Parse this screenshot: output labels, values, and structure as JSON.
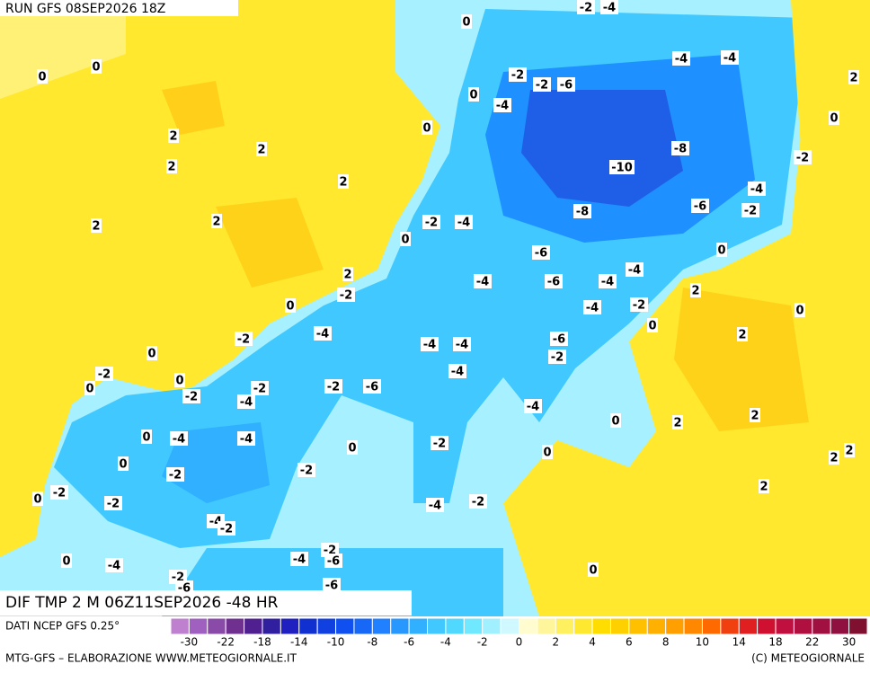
{
  "header": {
    "run": "RUN GFS 08SEP2026 18Z"
  },
  "map": {
    "labels": [
      0,
      -2,
      -4,
      0,
      0,
      -2,
      -2,
      -6,
      -4,
      -4,
      2,
      0,
      -4,
      0,
      2,
      2,
      0,
      -8,
      -2,
      2,
      -10,
      2,
      -4,
      -8,
      -6,
      -2,
      2,
      2,
      -2,
      -4,
      0,
      -6,
      0,
      2,
      -4,
      -6,
      -4,
      -4,
      -2,
      0,
      -4,
      -2,
      2,
      0,
      -4,
      0,
      -2,
      -4,
      -4,
      -6,
      2,
      0,
      -2,
      -4,
      -2,
      0,
      0,
      -2,
      -2,
      -2,
      -6,
      -4,
      -4,
      2,
      0,
      2,
      0,
      -4,
      -4,
      -2,
      0,
      0,
      2,
      2,
      0,
      -2,
      -2,
      2,
      0,
      -2,
      -2,
      -4,
      -2,
      -4,
      -2,
      -2,
      0,
      -4,
      -4,
      -6,
      0,
      -2,
      -6,
      -6
    ]
  },
  "footer": {
    "title": "DIF TMP 2 M 06Z11SEP2026 -48 HR",
    "credit": "MTG-GFS – ELABORAZIONE WWW.METEOGIORNALE.IT",
    "copyright": "(C) METEOGIORNALE"
  },
  "legend": {
    "source": "DATI NCEP GFS 0.25°",
    "colors": [
      "#c080d0",
      "#a060c0",
      "#8a4aa8",
      "#703090",
      "#502090",
      "#3020a0",
      "#2020c0",
      "#1030d0",
      "#1040e0",
      "#1050f0",
      "#1868f8",
      "#2080ff",
      "#2898ff",
      "#30b0ff",
      "#40c8ff",
      "#50d8ff",
      "#70e8ff",
      "#a0f0ff",
      "#d0f8ff",
      "#fffcd0",
      "#fff59a",
      "#fff060",
      "#ffe830",
      "#ffdd00",
      "#ffd000",
      "#ffc000",
      "#ffb000",
      "#ffa000",
      "#ff8800",
      "#ff6a00",
      "#f04010",
      "#e02020",
      "#d01030",
      "#c01040",
      "#b01040",
      "#a01040",
      "#901040",
      "#801030"
    ],
    "ticks": [
      -30,
      -22,
      -18,
      -14,
      -10,
      -8,
      -6,
      -4,
      -2,
      0,
      2,
      4,
      6,
      8,
      10,
      14,
      18,
      22,
      30
    ]
  }
}
